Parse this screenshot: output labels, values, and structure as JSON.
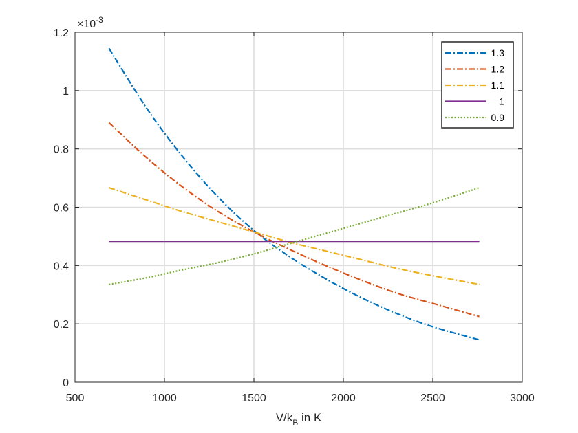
{
  "chart_data": {
    "type": "line",
    "title": "",
    "xlabel": {
      "main": "V/k",
      "sub": "B",
      "tail": " in K"
    },
    "ylabel": "",
    "exponent": {
      "base": "×10",
      "power": "-3"
    },
    "xlim": [
      500,
      3000
    ],
    "ylim": [
      0,
      1.2
    ],
    "xticks": [
      500,
      1000,
      1500,
      2000,
      2500,
      3000
    ],
    "xtick_labels": [
      "500",
      "1000",
      "1500",
      "2000",
      "2500",
      "3000"
    ],
    "yticks": [
      0,
      0.2,
      0.4,
      0.6,
      0.8,
      1.0,
      1.2
    ],
    "ytick_labels": [
      "0",
      "0.2",
      "0.4",
      "0.6",
      "0.8",
      "1",
      "1.2"
    ],
    "grid": true,
    "legend_position": "top-right",
    "series": [
      {
        "name": "1.3",
        "color": "#0072BD",
        "dash": "dashdot",
        "x": [
          690,
          900,
          1100,
          1300,
          1500,
          1700,
          1900,
          2100,
          2300,
          2500,
          2760
        ],
        "y": [
          1.145,
          0.94,
          0.775,
          0.635,
          0.52,
          0.43,
          0.355,
          0.29,
          0.235,
          0.19,
          0.145
        ]
      },
      {
        "name": "1.2",
        "color": "#D95319",
        "dash": "dashdot",
        "x": [
          690,
          900,
          1100,
          1300,
          1500,
          1700,
          1900,
          2100,
          2300,
          2500,
          2760
        ],
        "y": [
          0.89,
          0.77,
          0.67,
          0.585,
          0.515,
          0.455,
          0.4,
          0.35,
          0.305,
          0.27,
          0.225
        ]
      },
      {
        "name": "1.1",
        "color": "#EDB120",
        "dash": "dashdot",
        "x": [
          690,
          900,
          1100,
          1300,
          1500,
          1700,
          1900,
          2100,
          2300,
          2500,
          2760
        ],
        "y": [
          0.667,
          0.625,
          0.585,
          0.55,
          0.515,
          0.48,
          0.45,
          0.42,
          0.39,
          0.365,
          0.335
        ]
      },
      {
        "name": "1",
        "color": "#7E2F8E",
        "dash": "solid",
        "x": [
          690,
          2760
        ],
        "y": [
          0.483,
          0.483
        ]
      },
      {
        "name": "0.9",
        "color": "#77AC30",
        "dash": "dotted",
        "x": [
          690,
          900,
          1100,
          1300,
          1500,
          1700,
          1900,
          2100,
          2300,
          2500,
          2760
        ],
        "y": [
          0.335,
          0.358,
          0.385,
          0.41,
          0.44,
          0.475,
          0.51,
          0.545,
          0.58,
          0.615,
          0.667
        ]
      }
    ]
  }
}
